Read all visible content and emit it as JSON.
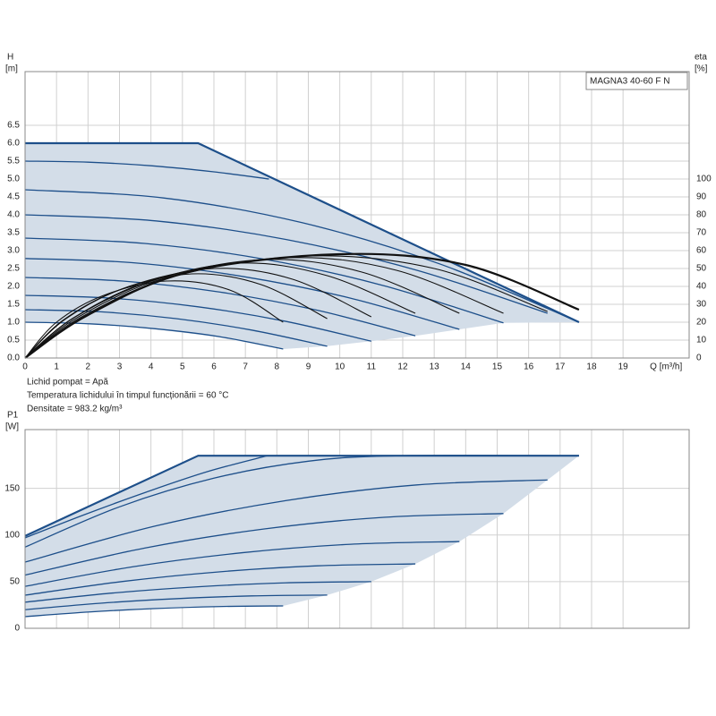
{
  "chart_data": [
    {
      "type": "line",
      "title": "MAGNA3 40-60 F N",
      "ylabel": "H",
      "yunit": "[m]",
      "y2label": "eta",
      "y2unit": "[%]",
      "xlabel": "Q [m³/h]",
      "annotations": [
        "Lichid pompat = Apă",
        "Temperatura lichidului în timpul funcționării = 60 °C",
        "Densitate = 983.2 kg/m³"
      ],
      "xlim": [
        0,
        21.1
      ],
      "ylim": [
        0,
        8
      ],
      "y2lim": [
        0,
        160
      ],
      "xticks": [
        0,
        1,
        2,
        3,
        4,
        5,
        6,
        7,
        8,
        9,
        10,
        11,
        12,
        13,
        14,
        15,
        16,
        17,
        18,
        19
      ],
      "yticks": [
        {
          "value": 0,
          "label": "0.0"
        },
        0.5,
        {
          "value": 1,
          "label": "1.0"
        },
        1.5,
        {
          "value": 2,
          "label": "2.0"
        },
        2.5,
        {
          "value": 3,
          "label": "3.0"
        },
        3.5,
        {
          "value": 4,
          "label": "4.0"
        },
        4.5,
        {
          "value": 5,
          "label": "5.0"
        },
        5.5,
        {
          "value": 6,
          "label": "6.0"
        },
        6.5
      ],
      "y2ticks": [
        0,
        10,
        20,
        30,
        40,
        50,
        60,
        70,
        80,
        90,
        100
      ],
      "grid": true,
      "series": [
        {
          "kind": "area",
          "color": "#d3dde8",
          "x": [
            0,
            5.5,
            17.6,
            15.2,
            13.8,
            12.4,
            11,
            9.6,
            8.2,
            6,
            4,
            2,
            0
          ],
          "values": [
            6,
            6,
            1,
            0.98,
            0.8,
            0.62,
            0.47,
            0.33,
            0.25,
            0.6,
            0.82,
            0.955,
            1
          ]
        },
        {
          "kind": "line",
          "smooth": true,
          "color": "#1d4f8a",
          "width": 1.3,
          "x": [
            0,
            2.05,
            4.1,
            6.15,
            8.2
          ],
          "values": [
            1,
            0.955,
            0.82,
            0.6,
            0.25
          ]
        },
        {
          "kind": "line",
          "smooth": true,
          "color": "#1d4f8a",
          "width": 1.3,
          "x": [
            0,
            2.4,
            4.8,
            7.2,
            9.6
          ],
          "values": [
            1.35,
            1.29,
            1.1,
            0.78,
            0.33
          ]
        },
        {
          "kind": "line",
          "smooth": true,
          "color": "#1d4f8a",
          "width": 1.3,
          "x": [
            0,
            2.75,
            5.5,
            8.25,
            11
          ],
          "values": [
            1.75,
            1.67,
            1.43,
            1.03,
            0.47
          ]
        },
        {
          "kind": "line",
          "smooth": true,
          "color": "#1d4f8a",
          "width": 1.3,
          "x": [
            0,
            3.1,
            6.2,
            9.3,
            12.4
          ],
          "values": [
            2.25,
            2.15,
            1.84,
            1.33,
            0.62
          ]
        },
        {
          "kind": "line",
          "smooth": true,
          "color": "#1d4f8a",
          "width": 1.3,
          "x": [
            0,
            3.45,
            6.9,
            10.35,
            13.8
          ],
          "values": [
            2.78,
            2.66,
            2.28,
            1.67,
            0.8
          ]
        },
        {
          "kind": "line",
          "smooth": true,
          "color": "#1d4f8a",
          "width": 1.3,
          "x": [
            0,
            3.8,
            7.6,
            11.4,
            15.2
          ],
          "values": [
            3.35,
            3.2,
            2.76,
            2.02,
            0.98
          ]
        },
        {
          "kind": "line",
          "smooth": true,
          "color": "#1d4f8a",
          "width": 1.3,
          "x": [
            0,
            4.15,
            8.3,
            12.45,
            16.6
          ],
          "values": [
            4,
            3.83,
            3.31,
            2.45,
            1.25
          ]
        },
        {
          "kind": "line",
          "smooth": true,
          "color": "#1d4f8a",
          "width": 1.3,
          "x": [
            0,
            4.4,
            8.8,
            13.2,
            17.6
          ],
          "values": [
            4.7,
            4.47,
            3.78,
            2.62,
            1
          ]
        },
        {
          "kind": "line",
          "smooth": true,
          "color": "#1d4f8a",
          "width": 1.3,
          "x": [
            0,
            2,
            4,
            6,
            7.75
          ],
          "values": [
            5.5,
            5.47,
            5.37,
            5.2,
            5
          ]
        },
        {
          "kind": "line",
          "smooth": false,
          "color": "#1d4f8a",
          "width": 2.2,
          "x": [
            0,
            5.5,
            17.6
          ],
          "values": [
            6,
            6,
            1
          ]
        },
        {
          "kind": "line",
          "smooth": true,
          "axis": "y2",
          "color": "#111111",
          "width": 1.1,
          "x": [
            0,
            1,
            2.5,
            4.5,
            6.5,
            8.2
          ],
          "values": [
            0,
            20,
            35,
            43,
            38,
            20
          ]
        },
        {
          "kind": "line",
          "smooth": true,
          "axis": "y2",
          "color": "#111111",
          "width": 1.1,
          "x": [
            0,
            1.2,
            3,
            5.3,
            7.5,
            9.6
          ],
          "values": [
            0,
            21,
            38,
            47,
            41,
            22
          ]
        },
        {
          "kind": "line",
          "smooth": true,
          "axis": "y2",
          "color": "#111111",
          "width": 1.1,
          "x": [
            0,
            1.3,
            3.3,
            6,
            8.5,
            11
          ],
          "values": [
            0,
            22,
            40,
            50,
            44,
            23
          ]
        },
        {
          "kind": "line",
          "smooth": true,
          "axis": "y2",
          "color": "#111111",
          "width": 1.1,
          "x": [
            0,
            1.5,
            3.8,
            6.8,
            9.6,
            12.4
          ],
          "values": [
            0,
            22,
            42,
            53,
            46,
            25
          ]
        },
        {
          "kind": "line",
          "smooth": true,
          "axis": "y2",
          "color": "#111111",
          "width": 1.1,
          "x": [
            0,
            1.6,
            4.2,
            7.6,
            10.7,
            13.8
          ],
          "values": [
            0,
            23,
            44,
            55,
            48,
            25
          ]
        },
        {
          "kind": "line",
          "smooth": true,
          "axis": "y2",
          "color": "#111111",
          "width": 1.1,
          "x": [
            0,
            1.7,
            4.5,
            8.4,
            11.8,
            15.2
          ],
          "values": [
            0,
            23,
            45,
            56,
            49,
            25
          ]
        },
        {
          "kind": "line",
          "smooth": true,
          "axis": "y2",
          "color": "#111111",
          "width": 1.1,
          "x": [
            0,
            1.8,
            4.8,
            9,
            13,
            16.6
          ],
          "values": [
            0,
            23,
            46,
            57,
            50,
            26
          ]
        },
        {
          "kind": "line",
          "smooth": true,
          "axis": "y2",
          "color": "#111111",
          "width": 2.2,
          "x": [
            0,
            2,
            5.2,
            10,
            14,
            17.6
          ],
          "values": [
            0,
            24,
            48,
            58,
            52,
            27
          ]
        }
      ]
    },
    {
      "type": "line",
      "ylabel": "P1",
      "yunit": "[W]",
      "xlim": [
        0,
        21.1
      ],
      "ylim": [
        0,
        213
      ],
      "yticks": [
        0,
        50,
        100,
        150
      ],
      "grid": true,
      "series": [
        {
          "kind": "area",
          "color": "#d3dde8",
          "x": [
            0,
            5.5,
            17.6,
            16.6,
            15.2,
            13.8,
            12.4,
            11,
            9.6,
            8.2,
            6.15,
            4.1,
            2.05,
            0
          ],
          "values": [
            99,
            185,
            185,
            159,
            123,
            93,
            69,
            50,
            35.6,
            24,
            23.3,
            21.1,
            17.5,
            12.5
          ]
        },
        {
          "kind": "line",
          "smooth": true,
          "color": "#1d4f8a",
          "width": 1.3,
          "x": [
            0,
            2.05,
            4.1,
            6.15,
            8.2
          ],
          "values": [
            12.5,
            17.5,
            21.1,
            23.3,
            24
          ]
        },
        {
          "kind": "line",
          "smooth": true,
          "color": "#1d4f8a",
          "width": 1.3,
          "x": [
            0,
            2.4,
            4.8,
            7.2,
            9.6
          ],
          "values": [
            20,
            26.9,
            31.7,
            34.7,
            35.6
          ]
        },
        {
          "kind": "line",
          "smooth": true,
          "color": "#1d4f8a",
          "width": 1.3,
          "x": [
            0,
            2.75,
            5.5,
            8.25,
            11
          ],
          "values": [
            28,
            37.7,
            44.5,
            48.7,
            50
          ]
        },
        {
          "kind": "line",
          "smooth": true,
          "color": "#1d4f8a",
          "width": 1.3,
          "x": [
            0,
            3.1,
            6.2,
            9.3,
            12.4
          ],
          "values": [
            35.5,
            50.2,
            60.6,
            67,
            69
          ]
        },
        {
          "kind": "line",
          "smooth": true,
          "color": "#1d4f8a",
          "width": 1.3,
          "x": [
            0,
            3.45,
            6.9,
            10.35,
            13.8
          ],
          "values": [
            45,
            66.1,
            81,
            90.1,
            93
          ]
        },
        {
          "kind": "line",
          "smooth": true,
          "color": "#1d4f8a",
          "width": 1.3,
          "x": [
            0,
            3.8,
            7.6,
            11.4,
            15.2
          ],
          "values": [
            57,
            86,
            106.5,
            119,
            123
          ]
        },
        {
          "kind": "line",
          "smooth": true,
          "color": "#1d4f8a",
          "width": 1.3,
          "x": [
            0,
            4.15,
            8.3,
            12.45,
            16.6
          ],
          "values": [
            71,
            109.7,
            137,
            153.7,
            159
          ]
        },
        {
          "kind": "line",
          "smooth": true,
          "color": "#1d4f8a",
          "width": 1.3,
          "x": [
            0,
            3,
            6,
            9,
            11.9,
            17.6
          ],
          "values": [
            87,
            130.2,
            160.9,
            179.1,
            185,
            185
          ]
        },
        {
          "kind": "line",
          "smooth": true,
          "color": "#1d4f8a",
          "width": 1.3,
          "x": [
            0,
            1.9,
            3.85,
            5.8,
            7.7
          ],
          "values": [
            97,
            122,
            146,
            168,
            185
          ]
        },
        {
          "kind": "line",
          "smooth": false,
          "color": "#1d4f8a",
          "width": 2.2,
          "x": [
            0,
            5.5,
            17.6
          ],
          "values": [
            99,
            185,
            185
          ]
        }
      ]
    }
  ]
}
